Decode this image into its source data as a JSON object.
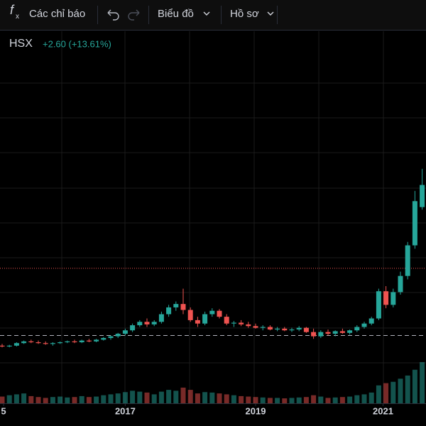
{
  "toolbar": {
    "indicators": "Các chỉ báo",
    "chart": "Biểu đồ",
    "profile": "Hồ sơ"
  },
  "chart_data": {
    "type": "candlestick",
    "symbol": "HSX",
    "change": "+2.60 (+13.61%)",
    "up_color": "#26a69a",
    "down_color": "#ef5350",
    "ylim": [
      1.7,
      39.7
    ],
    "volume_lim": [
      0,
      100
    ],
    "xticks": [
      {
        "value": 0.2,
        "label": "5"
      },
      {
        "value": 17,
        "label": "2017"
      },
      {
        "value": 35,
        "label": "2019"
      },
      {
        "value": 52.6,
        "label": "2021"
      }
    ],
    "reference_lines": [
      {
        "value": 4.0,
        "style": "dashed",
        "color": "#b2b5be"
      },
      {
        "value": 11.9,
        "style": "dotted",
        "color": "#ef5350"
      }
    ],
    "open": [
      2.8,
      2.7,
      2.8,
      3.1,
      3.3,
      3.2,
      3.1,
      3.0,
      3.1,
      3.2,
      3.3,
      3.2,
      3.4,
      3.3,
      3.5,
      3.7,
      3.9,
      4.2,
      4.6,
      5.2,
      5.6,
      5.3,
      5.6,
      6.5,
      7.3,
      7.7,
      7.0,
      5.8,
      5.4,
      6.5,
      6.9,
      6.2,
      5.4,
      5.5,
      5.3,
      5.1,
      4.9,
      5.0,
      4.7,
      4.8,
      4.6,
      4.7,
      4.9,
      4.4,
      3.9,
      4.4,
      4.2,
      4.5,
      4.3,
      4.6,
      5.0,
      5.4,
      6.0,
      9.2,
      7.6,
      9.1,
      11.0,
      14.6,
      19.1
    ],
    "high": [
      3.0,
      2.9,
      3.2,
      3.4,
      3.5,
      3.4,
      3.3,
      3.2,
      3.3,
      3.4,
      3.5,
      3.5,
      3.6,
      3.6,
      3.8,
      4.0,
      4.3,
      4.8,
      5.4,
      5.8,
      6.0,
      5.8,
      6.8,
      7.6,
      8.0,
      9.5,
      7.3,
      6.2,
      6.8,
      7.2,
      7.1,
      6.5,
      5.7,
      5.8,
      5.6,
      5.4,
      5.2,
      5.2,
      5.0,
      5.0,
      4.9,
      5.1,
      5.0,
      4.8,
      4.6,
      4.7,
      4.6,
      4.8,
      4.7,
      5.2,
      5.6,
      6.2,
      9.5,
      9.8,
      9.5,
      11.5,
      15.0,
      21.0,
      23.6
    ],
    "low": [
      2.6,
      2.6,
      2.7,
      3.0,
      3.1,
      3.0,
      2.9,
      2.8,
      3.0,
      3.1,
      3.1,
      3.1,
      3.2,
      3.2,
      3.4,
      3.5,
      3.7,
      4.0,
      4.4,
      5.0,
      5.0,
      5.1,
      5.4,
      6.2,
      6.9,
      6.5,
      5.6,
      5.0,
      5.2,
      6.2,
      6.0,
      5.2,
      5.0,
      5.1,
      4.9,
      4.8,
      4.6,
      4.6,
      4.5,
      4.5,
      4.4,
      4.5,
      4.3,
      3.6,
      3.7,
      4.0,
      3.9,
      4.2,
      4.1,
      4.4,
      4.8,
      5.2,
      5.8,
      7.2,
      7.3,
      8.8,
      10.6,
      14.2,
      18.8
    ],
    "close": [
      2.7,
      2.8,
      3.1,
      3.3,
      3.2,
      3.1,
      3.0,
      3.1,
      3.2,
      3.3,
      3.2,
      3.4,
      3.3,
      3.5,
      3.7,
      3.9,
      4.2,
      4.6,
      5.2,
      5.6,
      5.3,
      5.6,
      6.5,
      7.3,
      7.7,
      7.0,
      5.8,
      5.4,
      6.5,
      6.9,
      6.2,
      5.4,
      5.5,
      5.3,
      5.1,
      4.9,
      5.0,
      4.7,
      4.8,
      4.6,
      4.7,
      4.9,
      4.4,
      3.9,
      4.4,
      4.2,
      4.5,
      4.3,
      4.6,
      5.0,
      5.4,
      6.0,
      9.2,
      7.6,
      9.1,
      11.0,
      14.6,
      19.8,
      21.7
    ],
    "volume": [
      15,
      18,
      20,
      22,
      16,
      14,
      12,
      14,
      15,
      13,
      14,
      16,
      14,
      15,
      18,
      20,
      22,
      25,
      28,
      26,
      24,
      20,
      26,
      30,
      28,
      35,
      30,
      22,
      25,
      24,
      22,
      20,
      18,
      16,
      15,
      14,
      13,
      12,
      12,
      11,
      12,
      13,
      14,
      18,
      15,
      12,
      13,
      14,
      15,
      18,
      20,
      24,
      40,
      45,
      48,
      55,
      62,
      75,
      92
    ]
  }
}
